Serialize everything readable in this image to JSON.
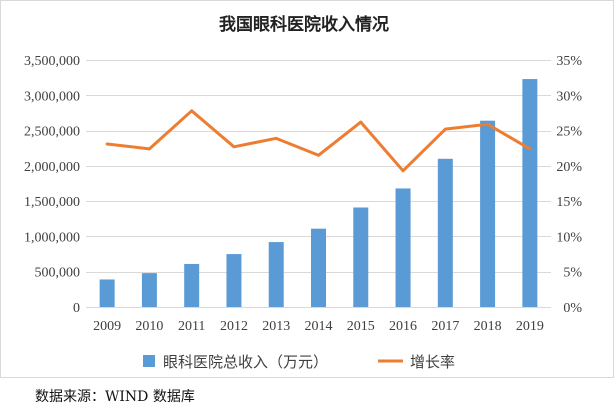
{
  "chart_data": {
    "type": "bar",
    "title": "我国眼科医院收入情况",
    "categories": [
      "2009",
      "2010",
      "2011",
      "2012",
      "2013",
      "2014",
      "2015",
      "2016",
      "2017",
      "2018",
      "2019"
    ],
    "series": [
      {
        "name": "眼科医院总收入（万元）",
        "type": "bar",
        "axis": "left",
        "color": "#5B9BD5",
        "values": [
          390000,
          480000,
          610000,
          750000,
          920000,
          1110000,
          1410000,
          1680000,
          2100000,
          2640000,
          3230000
        ]
      },
      {
        "name": "增长率",
        "type": "line",
        "axis": "right",
        "color": "#ED7D31",
        "values": [
          23.1,
          22.4,
          27.8,
          22.7,
          23.9,
          21.5,
          26.2,
          19.3,
          25.2,
          25.9,
          22.4
        ]
      }
    ],
    "y_left": {
      "range": [
        0,
        3500000
      ],
      "ticks": [
        0,
        500000,
        1000000,
        1500000,
        2000000,
        2500000,
        3000000,
        3500000
      ],
      "tick_labels": [
        "0",
        "500,000",
        "1,000,000",
        "1,500,000",
        "2,000,000",
        "2,500,000",
        "3,000,000",
        "3,500,000"
      ]
    },
    "y_right": {
      "range": [
        0,
        35
      ],
      "ticks": [
        0,
        5,
        10,
        15,
        20,
        25,
        30,
        35
      ],
      "tick_labels": [
        "0%",
        "5%",
        "10%",
        "15%",
        "20%",
        "25%",
        "30%",
        "35%"
      ]
    },
    "grid": true,
    "legend": "bottom"
  },
  "source": "数据来源：WIND 数据库"
}
